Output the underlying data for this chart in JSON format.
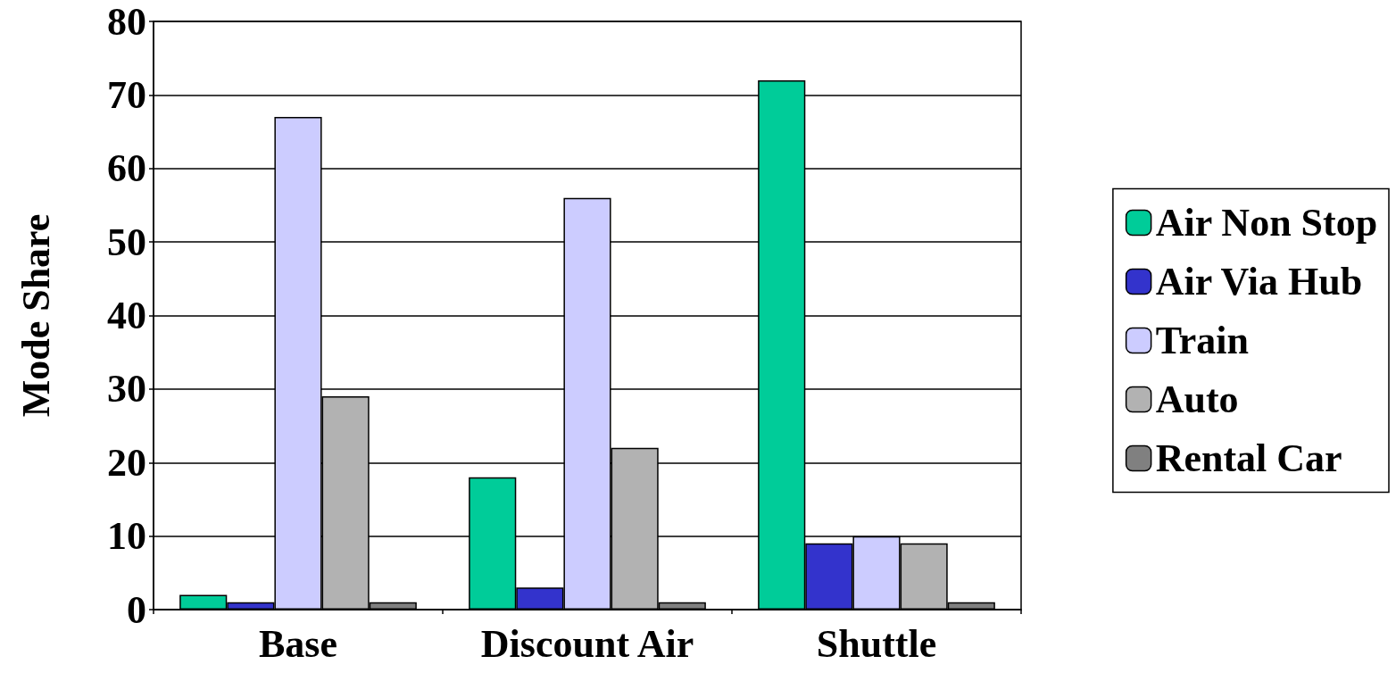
{
  "chart_data": {
    "type": "bar",
    "ylabel": "Mode Share",
    "categories": [
      "Base",
      "Discount Air",
      "Shuttle"
    ],
    "series": [
      {
        "name": "Air Non Stop",
        "color": "#00cc99",
        "values": [
          2,
          18,
          72
        ]
      },
      {
        "name": "Air Via Hub",
        "color": "#3333cc",
        "values": [
          1,
          3,
          9
        ]
      },
      {
        "name": "Train",
        "color": "#ccccff",
        "values": [
          67,
          56,
          10
        ]
      },
      {
        "name": "Auto",
        "color": "#b2b2b2",
        "values": [
          29,
          22,
          9
        ]
      },
      {
        "name": "Rental Car",
        "color": "#808080",
        "values": [
          1,
          1,
          1
        ]
      }
    ],
    "ylim": [
      0,
      80
    ],
    "yticks": [
      0,
      10,
      20,
      30,
      40,
      50,
      60,
      70,
      80
    ],
    "grid": "y",
    "legend": "right"
  }
}
